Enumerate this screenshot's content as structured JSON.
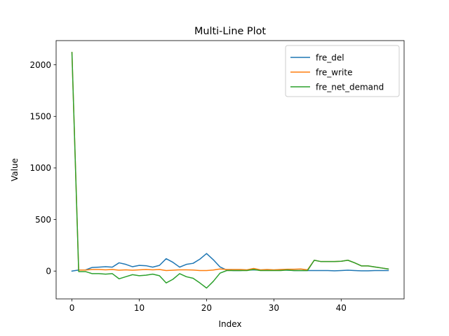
{
  "chart_data": {
    "type": "line",
    "title": "Multi-Line Plot",
    "xlabel": "Index",
    "ylabel": "Value",
    "xlim": [
      -2.35,
      49.35
    ],
    "ylim": [
      -270,
      2235
    ],
    "xticks": [
      0,
      10,
      20,
      30,
      40
    ],
    "yticks": [
      0,
      500,
      1000,
      1500,
      2000
    ],
    "grid": false,
    "legend_position": "upper right",
    "x": [
      0,
      1,
      2,
      3,
      4,
      5,
      6,
      7,
      8,
      9,
      10,
      11,
      12,
      13,
      14,
      15,
      16,
      17,
      18,
      19,
      20,
      21,
      22,
      23,
      24,
      25,
      26,
      27,
      28,
      29,
      30,
      31,
      32,
      33,
      34,
      35,
      36,
      37,
      38,
      39,
      40,
      41,
      42,
      43,
      44,
      45,
      46,
      47
    ],
    "series": [
      {
        "name": "fre_del",
        "color": "#1f77b4",
        "values": [
          0,
          10,
          10,
          35,
          38,
          42,
          38,
          80,
          65,
          42,
          55,
          52,
          38,
          55,
          120,
          85,
          38,
          65,
          75,
          115,
          170,
          110,
          40,
          10,
          5,
          5,
          10,
          12,
          8,
          10,
          10,
          12,
          8,
          5,
          5,
          5,
          5,
          5,
          5,
          2,
          5,
          8,
          5,
          2,
          2,
          5,
          5,
          5
        ]
      },
      {
        "name": "fre_write",
        "color": "#ff7f0e",
        "values": [
          2120,
          10,
          10,
          15,
          15,
          12,
          15,
          8,
          12,
          8,
          12,
          15,
          12,
          15,
          5,
          8,
          12,
          12,
          10,
          5,
          5,
          10,
          20,
          15,
          15,
          15,
          12,
          25,
          12,
          15,
          12,
          15,
          18,
          18,
          20,
          12,
          105,
          92,
          92,
          92,
          95,
          105,
          80,
          50,
          50,
          40,
          30,
          20
        ]
      },
      {
        "name": "fre_net_demand",
        "color": "#2ca02c",
        "values": [
          2120,
          -5,
          -5,
          -25,
          -25,
          -30,
          -25,
          -75,
          -55,
          -35,
          -45,
          -40,
          -30,
          -45,
          -115,
          -80,
          -25,
          -55,
          -70,
          -115,
          -165,
          -100,
          -20,
          5,
          5,
          5,
          5,
          15,
          5,
          5,
          5,
          5,
          10,
          5,
          5,
          5,
          105,
          92,
          92,
          92,
          95,
          105,
          80,
          50,
          50,
          40,
          30,
          20
        ]
      }
    ]
  }
}
